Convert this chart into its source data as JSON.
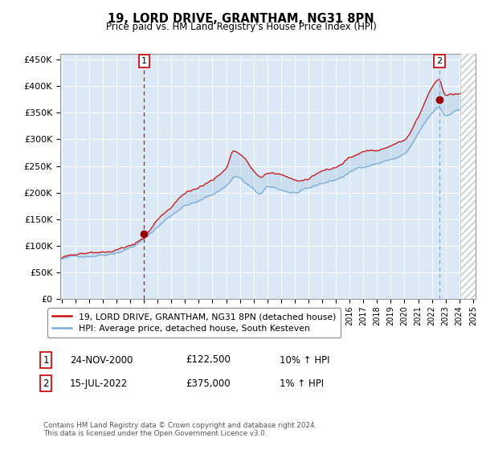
{
  "title": "19, LORD DRIVE, GRANTHAM, NG31 8PN",
  "subtitle": "Price paid vs. HM Land Registry's House Price Index (HPI)",
  "legend_line1": "19, LORD DRIVE, GRANTHAM, NG31 8PN (detached house)",
  "legend_line2": "HPI: Average price, detached house, South Kesteven",
  "table_rows": [
    {
      "num": "1",
      "date": "24-NOV-2000",
      "price": "£122,500",
      "hpi": "10% ↑ HPI"
    },
    {
      "num": "2",
      "date": "15-JUL-2022",
      "price": "£375,000",
      "hpi": "1% ↑ HPI"
    }
  ],
  "footer": "Contains HM Land Registry data © Crown copyright and database right 2024.\nThis data is licensed under the Open Government Licence v3.0.",
  "hpi_color": "#7aadd4",
  "price_color": "#cc1111",
  "marker_color": "#990000",
  "background_color": "#dbe8f5",
  "annotation_box_color": "#cc1111",
  "dashed_line1_color": "#cc1111",
  "dashed_line2_color": "#7aadd4",
  "hatch_color": "#bbbbbb",
  "ylim": [
    0,
    460000
  ],
  "yticks": [
    0,
    50000,
    100000,
    150000,
    200000,
    250000,
    300000,
    350000,
    400000,
    450000
  ],
  "sale1_x": 2001.0,
  "sale1_price": 122500,
  "sale2_x": 2022.55,
  "sale2_price": 375000,
  "hatch_start": 2024.08,
  "hatch_end": 2025.2,
  "xlim_start": 1994.9,
  "xlim_end": 2025.2
}
